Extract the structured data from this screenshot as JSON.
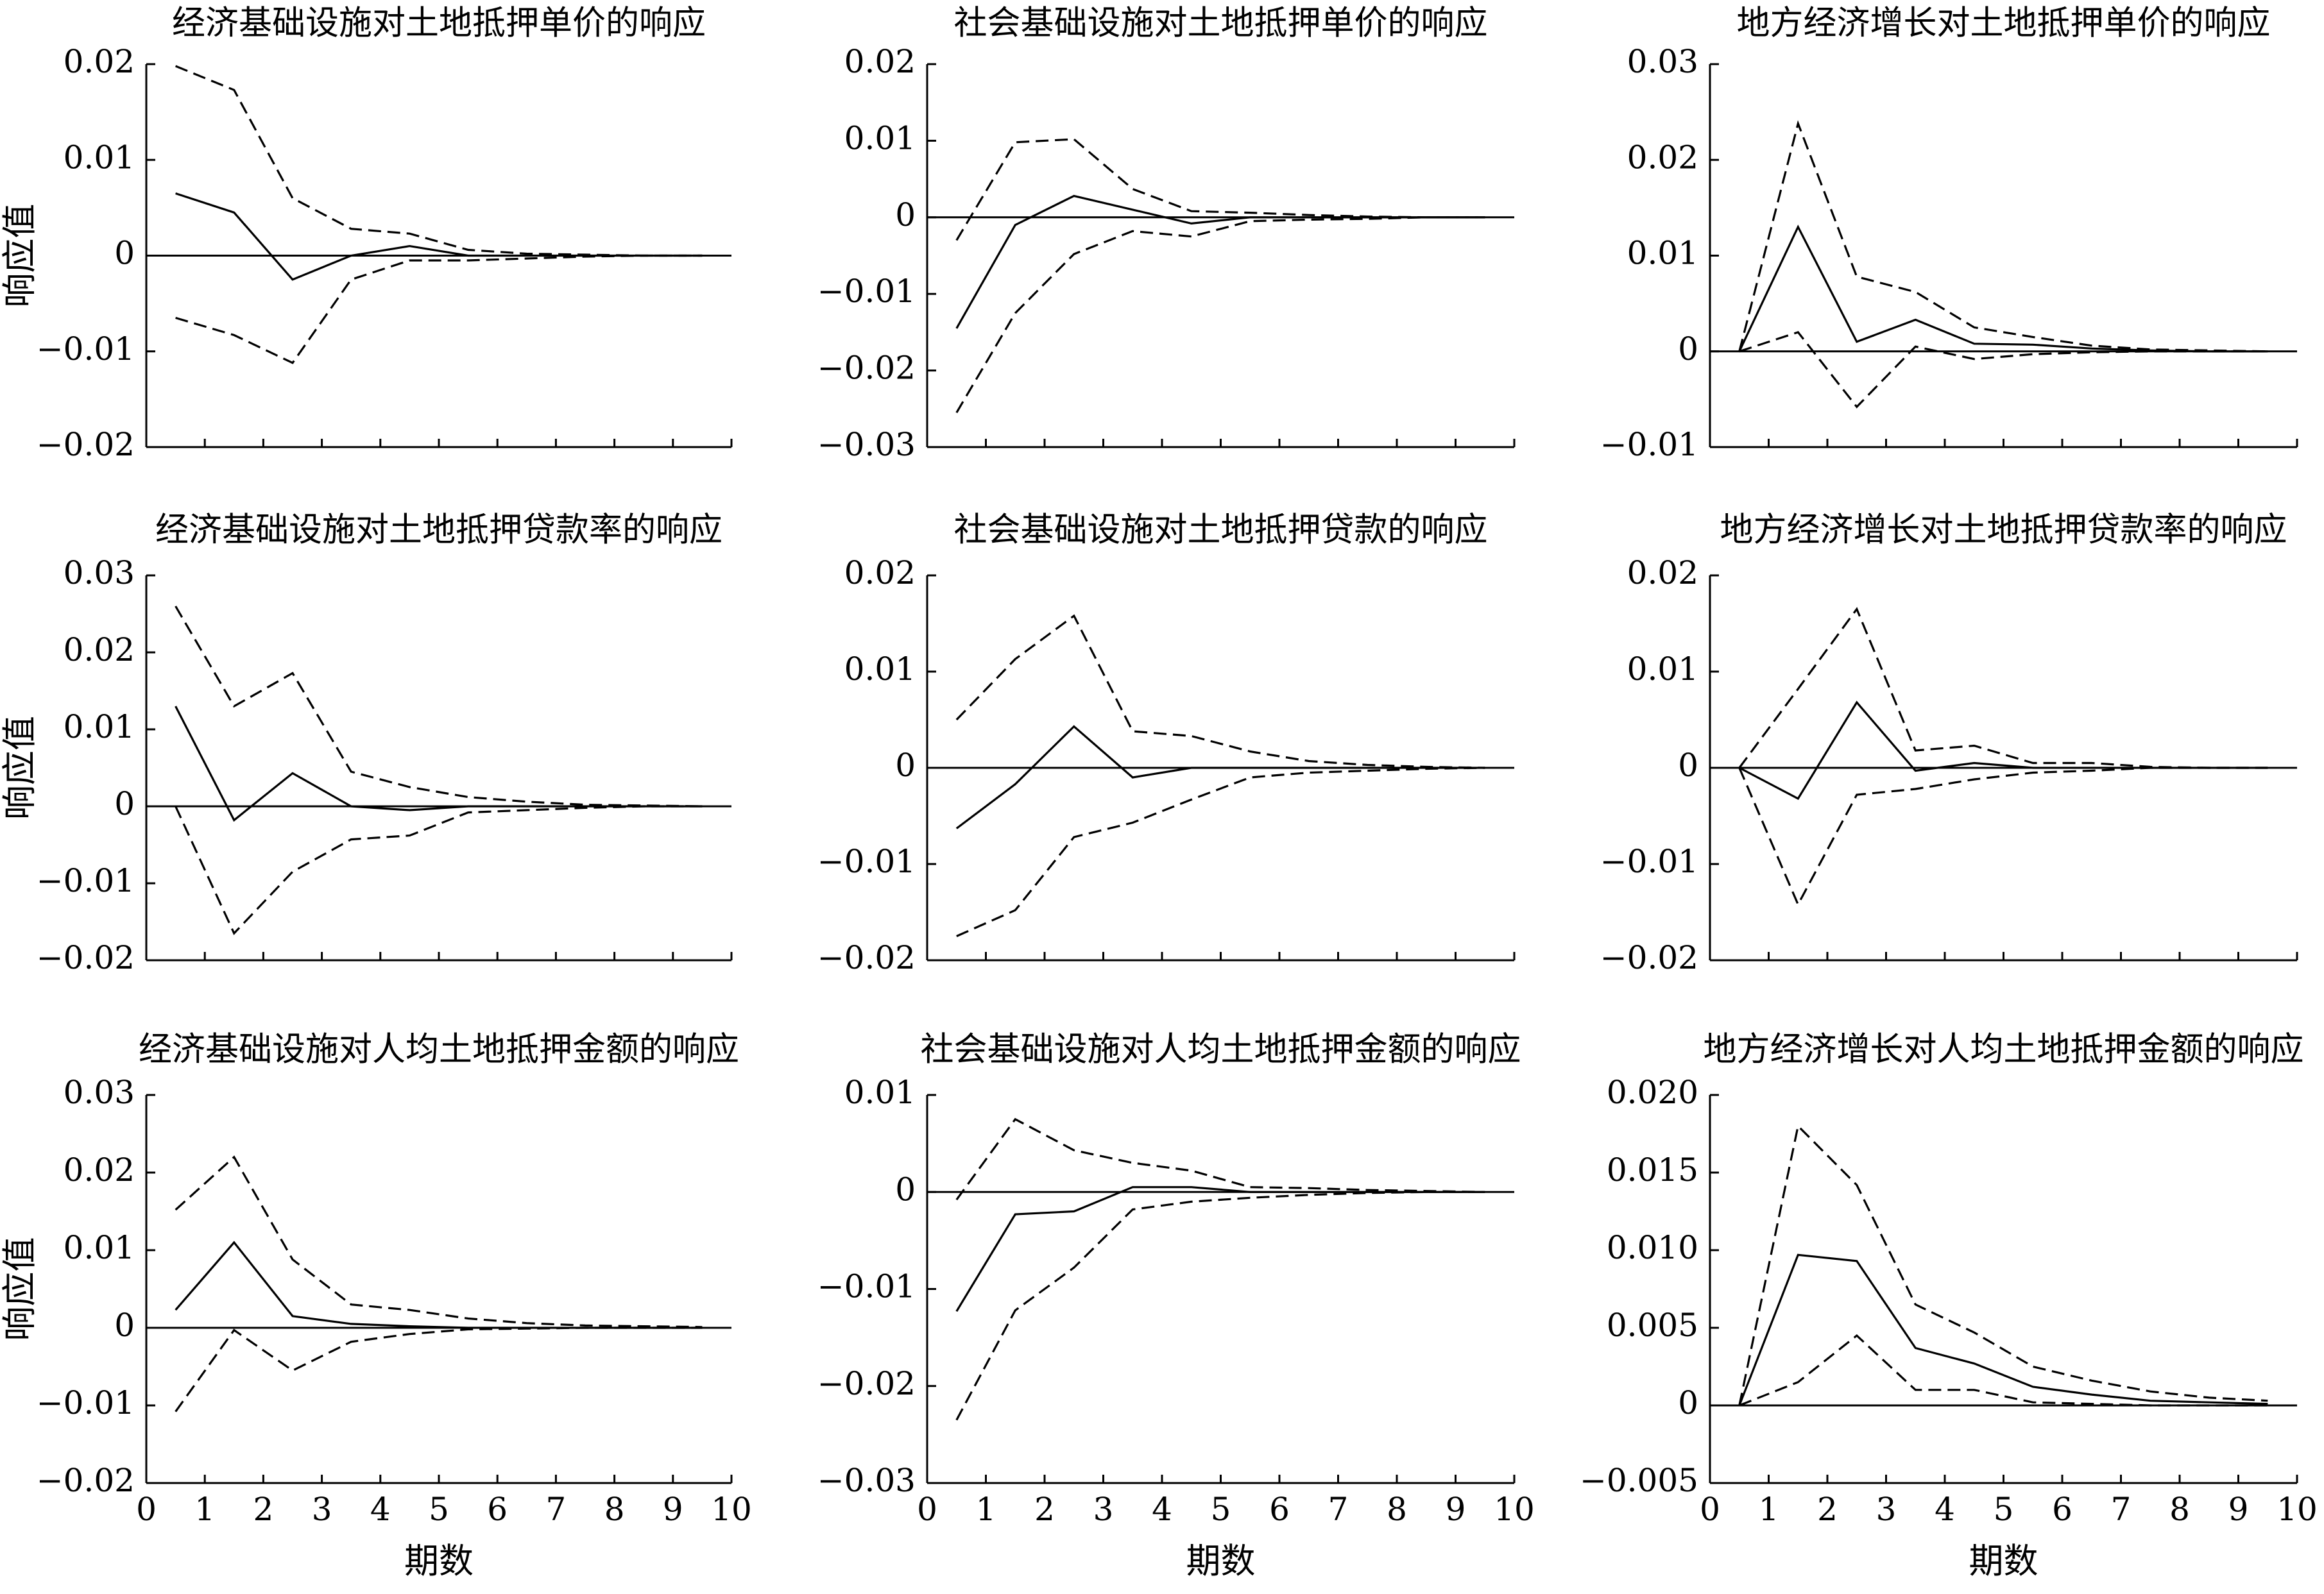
{
  "chart_data": [
    {
      "type": "line",
      "title": "经济基础设施对土地抵押单价的响应",
      "ylabel": "响应值",
      "xlabel": "",
      "ylim": [
        -0.02,
        0.02
      ],
      "yticks": [
        "0.02",
        "0.01",
        "0",
        "−0.01",
        "−0.02"
      ],
      "xlim": [
        0,
        10
      ],
      "xticks": [],
      "x": [
        0.5,
        1.5,
        2.5,
        3.5,
        4.5,
        5.5,
        6.5,
        7.5,
        8.5,
        9.5
      ],
      "series": [
        {
          "style": "solid",
          "values": [
            0.0065,
            0.0045,
            -0.0025,
            0.0,
            0.001,
            0.0,
            0.0,
            0.0,
            0.0,
            0.0
          ]
        },
        {
          "style": "dashed",
          "values": [
            0.0198,
            0.0173,
            0.006,
            0.0028,
            0.0023,
            0.0006,
            0.0002,
            0.0001,
            0.0,
            0.0
          ]
        },
        {
          "style": "dashed",
          "values": [
            -0.0065,
            -0.0083,
            -0.0112,
            -0.0025,
            -0.0005,
            -0.0005,
            -0.0003,
            -0.0001,
            0.0,
            0.0
          ]
        }
      ]
    },
    {
      "type": "line",
      "title": "社会基础设施对土地抵押单价的响应",
      "ylabel": "",
      "xlabel": "",
      "ylim": [
        -0.03,
        0.02
      ],
      "yticks": [
        "0.02",
        "0.01",
        "0",
        "−0.01",
        "−0.02",
        "−0.03"
      ],
      "xlim": [
        0,
        10
      ],
      "xticks": [],
      "x": [
        0.5,
        1.5,
        2.5,
        3.5,
        4.5,
        5.5,
        6.5,
        7.5,
        8.5,
        9.5
      ],
      "series": [
        {
          "style": "solid",
          "values": [
            -0.0145,
            -0.001,
            0.0028,
            0.001,
            -0.0008,
            0.0,
            0.0,
            0.0,
            0.0,
            0.0
          ]
        },
        {
          "style": "dashed",
          "values": [
            -0.003,
            0.0098,
            0.0102,
            0.0037,
            0.0008,
            0.0006,
            0.0003,
            0.0001,
            0.0,
            0.0
          ]
        },
        {
          "style": "dashed",
          "values": [
            -0.0255,
            -0.0125,
            -0.0048,
            -0.0018,
            -0.0025,
            -0.0005,
            -0.0003,
            -0.0002,
            0.0,
            0.0
          ]
        }
      ]
    },
    {
      "type": "line",
      "title": "地方经济增长对土地抵押单价的响应",
      "ylabel": "",
      "xlabel": "",
      "ylim": [
        -0.01,
        0.03
      ],
      "yticks": [
        "0.03",
        "0.02",
        "0.01",
        "0",
        "−0.01"
      ],
      "xlim": [
        0,
        10
      ],
      "xticks": [],
      "x": [
        0.5,
        1.5,
        2.5,
        3.5,
        4.5,
        5.5,
        6.5,
        7.5,
        8.5,
        9.5
      ],
      "series": [
        {
          "style": "solid",
          "values": [
            0.0,
            0.013,
            0.001,
            0.0033,
            0.0008,
            0.0007,
            0.0003,
            0.0001,
            0.0,
            0.0
          ]
        },
        {
          "style": "dashed",
          "values": [
            0.0,
            0.0238,
            0.0078,
            0.0062,
            0.0025,
            0.0015,
            0.0006,
            0.0002,
            0.0001,
            0.0
          ]
        },
        {
          "style": "dashed",
          "values": [
            0.0,
            0.002,
            -0.0058,
            0.0005,
            -0.0008,
            -0.0003,
            -0.0001,
            0.0,
            0.0,
            0.0
          ]
        }
      ]
    },
    {
      "type": "line",
      "title": "经济基础设施对土地抵押贷款率的响应",
      "ylabel": "响应值",
      "xlabel": "",
      "ylim": [
        -0.02,
        0.03
      ],
      "yticks": [
        "0.03",
        "0.02",
        "0.01",
        "0",
        "−0.01",
        "−0.02"
      ],
      "xlim": [
        0,
        10
      ],
      "xticks": [],
      "x": [
        0.5,
        1.5,
        2.5,
        3.5,
        4.5,
        5.5,
        6.5,
        7.5,
        8.5,
        9.5
      ],
      "series": [
        {
          "style": "solid",
          "values": [
            0.013,
            -0.0018,
            0.0043,
            0.0,
            -0.0005,
            0.0,
            0.0,
            0.0,
            0.0,
            0.0
          ]
        },
        {
          "style": "dashed",
          "values": [
            0.026,
            0.013,
            0.0173,
            0.0045,
            0.0025,
            0.0012,
            0.0006,
            0.0002,
            0.0001,
            0.0
          ]
        },
        {
          "style": "dashed",
          "values": [
            0.0,
            -0.0165,
            -0.0085,
            -0.0043,
            -0.0038,
            -0.0008,
            -0.0005,
            -0.0002,
            0.0,
            0.0
          ]
        }
      ]
    },
    {
      "type": "line",
      "title": "社会基础设施对土地抵押贷款的响应",
      "ylabel": "",
      "xlabel": "",
      "ylim": [
        -0.02,
        0.02
      ],
      "yticks": [
        "0.02",
        "0.01",
        "0",
        "−0.01",
        "−0.02"
      ],
      "xlim": [
        0,
        10
      ],
      "xticks": [],
      "x": [
        0.5,
        1.5,
        2.5,
        3.5,
        4.5,
        5.5,
        6.5,
        7.5,
        8.5,
        9.5
      ],
      "series": [
        {
          "style": "solid",
          "values": [
            -0.0063,
            -0.0017,
            0.0043,
            -0.001,
            0.0,
            0.0,
            0.0,
            0.0,
            0.0,
            0.0
          ]
        },
        {
          "style": "dashed",
          "values": [
            0.005,
            0.0113,
            0.0158,
            0.0038,
            0.0033,
            0.0017,
            0.0007,
            0.0003,
            0.0001,
            0.0
          ]
        },
        {
          "style": "dashed",
          "values": [
            -0.0175,
            -0.0148,
            -0.0072,
            -0.0057,
            -0.0033,
            -0.001,
            -0.0005,
            -0.0003,
            -0.0001,
            0.0
          ]
        }
      ]
    },
    {
      "type": "line",
      "title": "地方经济增长对土地抵押贷款率的响应",
      "ylabel": "",
      "xlabel": "",
      "ylim": [
        -0.02,
        0.02
      ],
      "yticks": [
        "0.02",
        "0.01",
        "0",
        "−0.01",
        "−0.02"
      ],
      "xlim": [
        0,
        10
      ],
      "xticks": [],
      "x": [
        0.5,
        1.5,
        2.5,
        3.5,
        4.5,
        5.5,
        6.5,
        7.5,
        8.5,
        9.5
      ],
      "series": [
        {
          "style": "solid",
          "values": [
            0.0,
            -0.0032,
            0.0068,
            -0.0003,
            0.0005,
            0.0,
            0.0,
            0.0,
            0.0,
            0.0
          ]
        },
        {
          "style": "dashed",
          "values": [
            0.0,
            0.0082,
            0.0165,
            0.0018,
            0.0023,
            0.0005,
            0.0005,
            0.0001,
            0.0,
            0.0
          ]
        },
        {
          "style": "dashed",
          "values": [
            0.0,
            -0.0142,
            -0.0028,
            -0.0022,
            -0.0012,
            -0.0005,
            -0.0003,
            0.0,
            0.0,
            0.0
          ]
        }
      ]
    },
    {
      "type": "line",
      "title": "经济基础设施对人均土地抵押金额的响应",
      "ylabel": "响应值",
      "xlabel": "期数",
      "ylim": [
        -0.02,
        0.03
      ],
      "yticks": [
        "0.03",
        "0.02",
        "0.01",
        "0",
        "−0.01",
        "−0.02"
      ],
      "xlim": [
        0,
        10
      ],
      "xticks": [
        "0",
        "1",
        "2",
        "3",
        "4",
        "5",
        "6",
        "7",
        "8",
        "9",
        "10"
      ],
      "x": [
        0.5,
        1.5,
        2.5,
        3.5,
        4.5,
        5.5,
        6.5,
        7.5,
        8.5,
        9.5
      ],
      "series": [
        {
          "style": "solid",
          "values": [
            0.0023,
            0.011,
            0.0015,
            0.0005,
            0.0002,
            0.0,
            0.0,
            0.0,
            0.0,
            0.0
          ]
        },
        {
          "style": "dashed",
          "values": [
            0.0152,
            0.022,
            0.0088,
            0.003,
            0.0023,
            0.0012,
            0.0006,
            0.0003,
            0.0002,
            0.0001
          ]
        },
        {
          "style": "dashed",
          "values": [
            -0.0108,
            -0.0003,
            -0.0055,
            -0.0018,
            -0.0008,
            -0.0002,
            -0.0001,
            0.0,
            0.0,
            0.0
          ]
        }
      ]
    },
    {
      "type": "line",
      "title": "社会基础设施对人均土地抵押金额的响应",
      "ylabel": "",
      "xlabel": "期数",
      "ylim": [
        -0.03,
        0.01
      ],
      "yticks": [
        "0.01",
        "0",
        "−0.01",
        "−0.02",
        "−0.03"
      ],
      "xlim": [
        0,
        10
      ],
      "xticks": [
        "0",
        "1",
        "2",
        "3",
        "4",
        "5",
        "6",
        "7",
        "8",
        "9",
        "10"
      ],
      "x": [
        0.5,
        1.5,
        2.5,
        3.5,
        4.5,
        5.5,
        6.5,
        7.5,
        8.5,
        9.5
      ],
      "series": [
        {
          "style": "solid",
          "values": [
            -0.0123,
            -0.0023,
            -0.002,
            0.0005,
            0.0005,
            0.0,
            0.0,
            0.0,
            0.0,
            0.0
          ]
        },
        {
          "style": "dashed",
          "values": [
            -0.0008,
            0.0075,
            0.0043,
            0.003,
            0.0022,
            0.0005,
            0.0004,
            0.0002,
            0.0001,
            0.0
          ]
        },
        {
          "style": "dashed",
          "values": [
            -0.0235,
            -0.0122,
            -0.0078,
            -0.0018,
            -0.001,
            -0.0006,
            -0.0003,
            -0.0001,
            0.0,
            0.0
          ]
        }
      ]
    },
    {
      "type": "line",
      "title": "地方经济增长对人均土地抵押金额的响应",
      "ylabel": "",
      "xlabel": "期数",
      "ylim": [
        -0.005,
        0.02
      ],
      "yticks": [
        "0.020",
        "0.015",
        "0.010",
        "0.005",
        "0",
        "−0.005"
      ],
      "xlim": [
        0,
        10
      ],
      "xticks": [
        "0",
        "1",
        "2",
        "3",
        "4",
        "5",
        "6",
        "7",
        "8",
        "9",
        "10"
      ],
      "x": [
        0.5,
        1.5,
        2.5,
        3.5,
        4.5,
        5.5,
        6.5,
        7.5,
        8.5,
        9.5
      ],
      "series": [
        {
          "style": "solid",
          "values": [
            0.0,
            0.0097,
            0.0093,
            0.0037,
            0.0027,
            0.0012,
            0.0007,
            0.0003,
            0.0002,
            0.0001
          ]
        },
        {
          "style": "dashed",
          "values": [
            0.0,
            0.018,
            0.0142,
            0.0065,
            0.0047,
            0.0025,
            0.0016,
            0.0009,
            0.0005,
            0.0003
          ]
        },
        {
          "style": "dashed",
          "values": [
            0.0,
            0.0015,
            0.0045,
            0.001,
            0.001,
            0.0002,
            0.0001,
            0.0,
            0.0,
            0.0
          ]
        }
      ]
    }
  ]
}
